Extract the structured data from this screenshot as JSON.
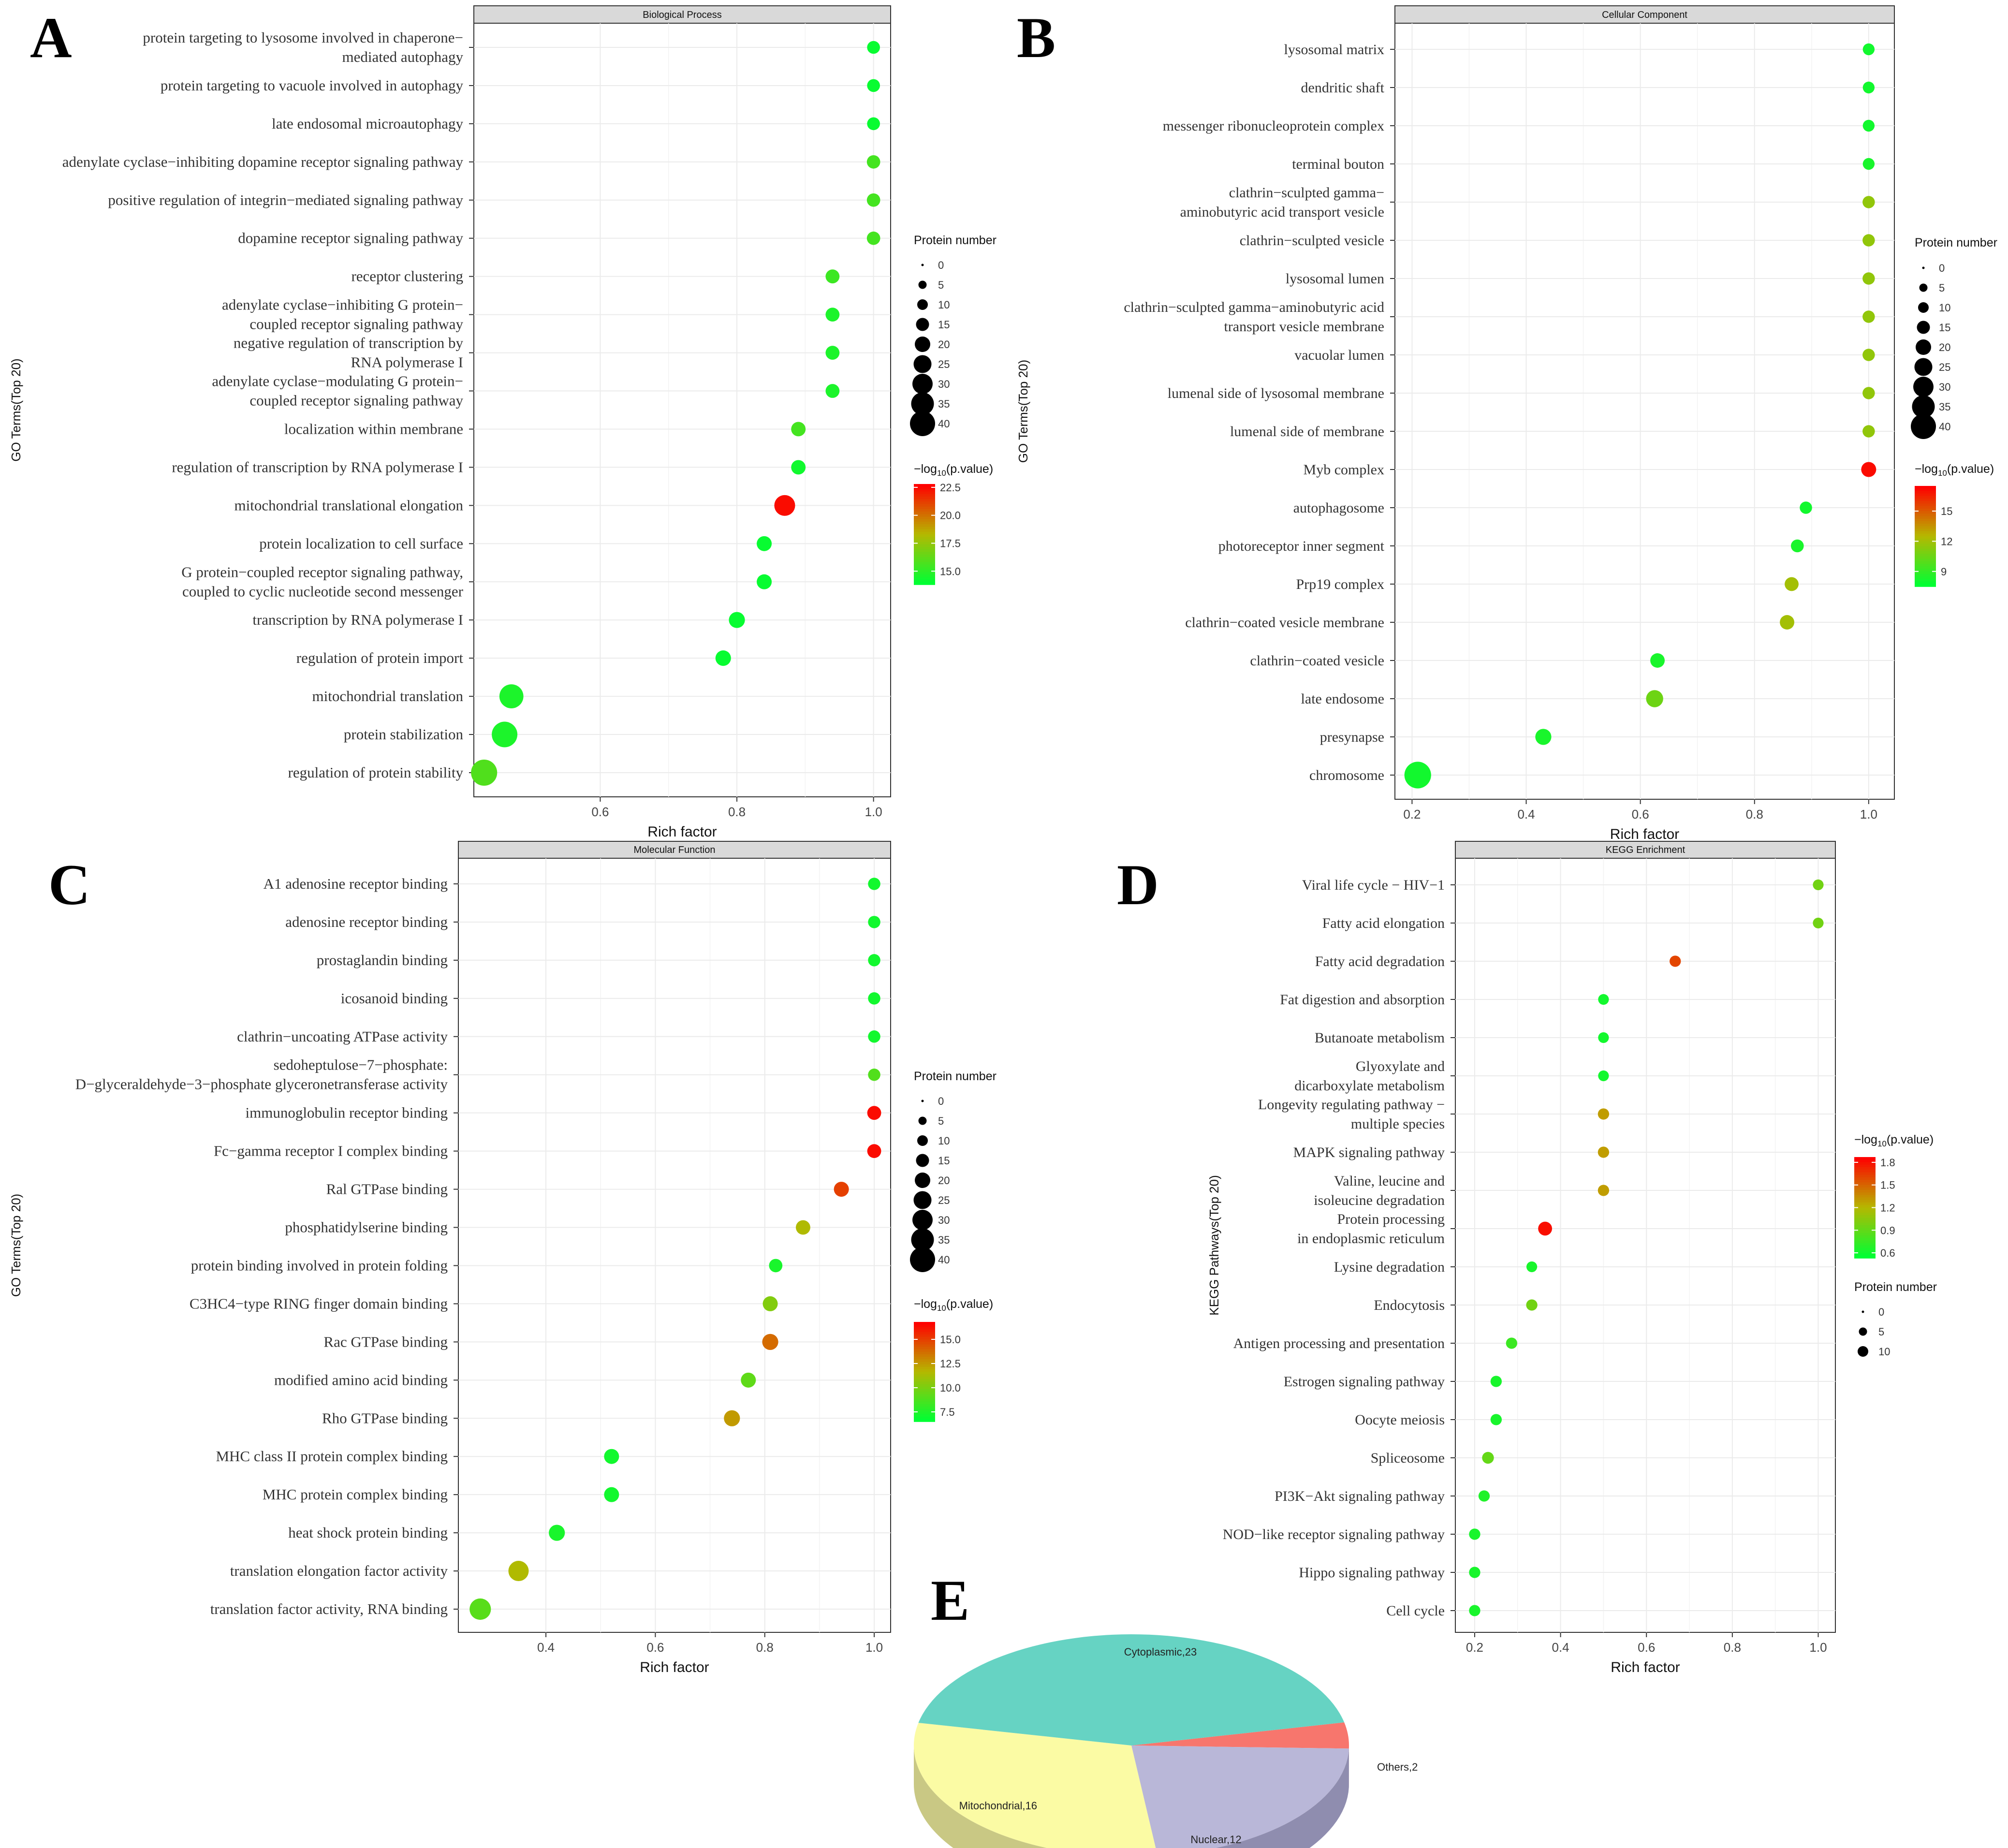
{
  "figure_labels": {
    "A": "A",
    "B": "B",
    "C": "C",
    "D": "D",
    "E": "E"
  },
  "chart_data": [
    {
      "id": "A",
      "type": "scatter",
      "title": "Biological Process",
      "xlabel": "Rich factor",
      "ylabel": "GO Terms(Top 20)",
      "xlim": [
        0.415,
        1.025
      ],
      "xticks": [
        0.6,
        0.8,
        1.0
      ],
      "xtick_labels": [
        "0.6",
        "0.8",
        "1.0"
      ],
      "size_legend": {
        "title": "Protein number",
        "values": [
          0,
          5,
          10,
          15,
          20,
          25,
          30,
          35,
          40
        ]
      },
      "color_legend": {
        "title_prefix": "−log",
        "title_sub": "10",
        "title_suffix": "(p.value)",
        "ticks": [
          15.0,
          17.5,
          20.0,
          22.5
        ],
        "tick_labels": [
          "15.0",
          "17.5",
          "20.0",
          "22.5"
        ],
        "min": 13.8,
        "max": 22.8
      },
      "terms": [
        "protein targeting to lysosome involved in chaperone−\nmediated autophagy",
        "protein targeting to vacuole involved in autophagy",
        "late endosomal microautophagy",
        "adenylate cyclase−inhibiting dopamine receptor signaling pathway",
        "positive regulation of integrin−mediated signaling pathway",
        "dopamine receptor signaling pathway",
        "receptor clustering",
        "adenylate cyclase−inhibiting G protein−\ncoupled receptor signaling pathway",
        "negative regulation of transcription by\nRNA polymerase I",
        "adenylate cyclase−modulating G protein−\ncoupled receptor signaling pathway",
        "localization within membrane",
        "regulation of transcription by RNA polymerase I",
        "mitochondrial translational elongation",
        "protein localization to cell surface",
        "G protein−coupled receptor signaling pathway,\ncoupled to cyclic nucleotide second messenger",
        "transcription by RNA polymerase I",
        "regulation of protein import",
        "mitochondrial translation",
        "protein stabilization",
        "regulation of protein stability"
      ],
      "x": [
        1.0,
        1.0,
        1.0,
        1.0,
        1.0,
        1.0,
        0.94,
        0.94,
        0.94,
        0.94,
        0.89,
        0.89,
        0.87,
        0.84,
        0.84,
        0.8,
        0.78,
        0.47,
        0.46,
        0.43
      ],
      "count": [
        6,
        6,
        6,
        7,
        7,
        7,
        8,
        8,
        8,
        8,
        9,
        9,
        21,
        10,
        10,
        12,
        11,
        27,
        30,
        31
      ],
      "pvalue_log": [
        14.0,
        14.0,
        14.0,
        15.5,
        15.5,
        15.5,
        15.3,
        14.5,
        14.5,
        14.5,
        15.5,
        14.2,
        22.5,
        14.0,
        14.0,
        14.0,
        14.0,
        14.5,
        14.5,
        15.8
      ]
    },
    {
      "id": "B",
      "type": "scatter",
      "title": "Cellular Component",
      "xlabel": "Rich factor",
      "ylabel": "GO Terms(Top 20)",
      "xlim": [
        0.17,
        1.045
      ],
      "xticks": [
        0.2,
        0.4,
        0.6,
        0.8,
        1.0
      ],
      "xtick_labels": [
        "0.2",
        "0.4",
        "0.6",
        "0.8",
        "1.0"
      ],
      "size_legend": {
        "title": "Protein number",
        "values": [
          0,
          5,
          10,
          15,
          20,
          25,
          30,
          35,
          40
        ]
      },
      "color_legend": {
        "title_prefix": "−log",
        "title_sub": "10",
        "title_suffix": "(p.value)",
        "ticks": [
          9,
          12,
          15
        ],
        "tick_labels": [
          "9",
          "12",
          "15"
        ],
        "min": 7.5,
        "max": 17.5
      },
      "terms": [
        "lysosomal matrix",
        "dendritic shaft",
        "messenger ribonucleoprotein complex",
        "terminal bouton",
        "clathrin−sculpted gamma−\naminobutyric acid transport vesicle",
        "clathrin−sculpted vesicle",
        "lysosomal lumen",
        "clathrin−sculpted gamma−aminobutyric acid\ntransport vesicle membrane",
        "vacuolar lumen",
        "lumenal side of lysosomal membrane",
        "lumenal side of membrane",
        "Myb complex",
        "autophagosome",
        "photoreceptor inner segment",
        "Prp19 complex",
        "clathrin−coated vesicle membrane",
        "clathrin−coated vesicle",
        "late endosome",
        "presynapse",
        "chromosome"
      ],
      "x": [
        1.0,
        1.0,
        1.0,
        1.0,
        1.0,
        1.0,
        1.0,
        1.0,
        1.0,
        1.0,
        1.0,
        1.0,
        0.89,
        0.875,
        0.865,
        0.857,
        0.63,
        0.625,
        0.43,
        0.21
      ],
      "count": [
        4,
        4,
        4,
        4,
        5,
        5,
        5,
        5,
        5,
        5,
        5,
        10,
        5,
        6,
        8,
        9,
        9,
        14,
        12,
        32
      ],
      "pvalue_log": [
        8.0,
        8.0,
        8.0,
        8.2,
        11.5,
        11.5,
        11.5,
        11.5,
        11.5,
        11.5,
        11.5,
        17.2,
        8.0,
        8.2,
        12.0,
        12.0,
        8.2,
        10.5,
        8.2,
        8.0
      ]
    },
    {
      "id": "C",
      "type": "scatter",
      "title": "Molecular Function",
      "xlabel": "Rich factor",
      "ylabel": "GO Terms(Top 20)",
      "xlim": [
        0.24,
        1.03
      ],
      "xticks": [
        0.4,
        0.6,
        0.8,
        1.0
      ],
      "xtick_labels": [
        "0.4",
        "0.6",
        "0.8",
        "1.0"
      ],
      "size_legend": {
        "title": "Protein number",
        "values": [
          0,
          5,
          10,
          15,
          20,
          25,
          30,
          35,
          40
        ]
      },
      "color_legend": {
        "title_prefix": "−log",
        "title_sub": "10",
        "title_suffix": "(p.value)",
        "ticks": [
          7.5,
          10.0,
          12.5,
          15.0
        ],
        "tick_labels": [
          "7.5",
          "10.0",
          "12.5",
          "15.0"
        ],
        "min": 6.5,
        "max": 16.8
      },
      "terms": [
        "A1 adenosine receptor binding",
        "adenosine receptor binding",
        "prostaglandin binding",
        "icosanoid binding",
        "clathrin−uncoating ATPase activity",
        "sedoheptulose−7−phosphate:\nD−glyceraldehyde−3−phosphate glyceronetransferase activity",
        "immunoglobulin receptor binding",
        "Fc−gamma receptor I complex binding",
        "Ral GTPase binding",
        "phosphatidylserine binding",
        "protein binding involved in protein folding",
        "C3HC4−type RING finger domain binding",
        "Rac GTPase binding",
        "modified amino acid binding",
        "Rho GTPase binding",
        "MHC class II protein complex binding",
        "MHC protein complex binding",
        "heat shock protein binding",
        "translation elongation factor activity",
        "translation factor activity, RNA binding"
      ],
      "x": [
        1.0,
        1.0,
        1.0,
        1.0,
        1.0,
        1.0,
        1.0,
        1.0,
        0.94,
        0.87,
        0.82,
        0.81,
        0.81,
        0.77,
        0.74,
        0.52,
        0.52,
        0.42,
        0.35,
        0.28
      ],
      "count": [
        5,
        5,
        5,
        5,
        5,
        5,
        8,
        8,
        10,
        9,
        7,
        10,
        12,
        10,
        12,
        10,
        10,
        12,
        20,
        22
      ],
      "pvalue_log": [
        7.0,
        7.0,
        7.0,
        7.0,
        7.0,
        8.8,
        16.5,
        16.5,
        15.0,
        11.5,
        7.2,
        10.2,
        13.8,
        9.2,
        12.5,
        7.0,
        7.0,
        7.2,
        11.5,
        9.0
      ]
    },
    {
      "id": "D",
      "type": "scatter",
      "title": "KEGG Enrichment",
      "xlabel": "Rich factor",
      "ylabel": "KEGG Pathways(Top 20)",
      "xlim": [
        0.155,
        1.04
      ],
      "xticks": [
        0.2,
        0.4,
        0.6,
        0.8,
        1.0
      ],
      "xtick_labels": [
        "0.2",
        "0.4",
        "0.6",
        "0.8",
        "1.0"
      ],
      "size_legend": {
        "title": "Protein number",
        "values": [
          0,
          5,
          10
        ]
      },
      "color_legend": {
        "title_prefix": "−log",
        "title_sub": "10",
        "title_suffix": "(p.value)",
        "ticks": [
          0.6,
          0.9,
          1.2,
          1.5,
          1.8
        ],
        "tick_labels": [
          "0.6",
          "0.9",
          "1.2",
          "1.5",
          "1.8"
        ],
        "min": 0.53,
        "max": 1.87
      },
      "terms": [
        "Viral life cycle − HIV−1",
        "Fatty acid elongation",
        "Fatty acid degradation",
        "Fat digestion and absorption",
        "Butanoate metabolism",
        "Glyoxylate and\ndicarboxylate metabolism",
        "Longevity regulating pathway −\nmultiple species",
        "MAPK signaling pathway",
        "Valine, leucine and\nisoleucine degradation",
        "Protein processing\nin endoplasmic reticulum",
        "Lysine degradation",
        "Endocytosis",
        "Antigen processing and presentation",
        "Estrogen signaling pathway",
        "Oocyte meiosis",
        "Spliceosome",
        "PI3K−Akt signaling pathway",
        "NOD−like receptor signaling pathway",
        "Hippo signaling pathway",
        "Cell cycle"
      ],
      "x": [
        1.0,
        1.0,
        0.667,
        0.5,
        0.5,
        0.5,
        0.5,
        0.5,
        0.5,
        0.364,
        0.333,
        0.333,
        0.286,
        0.25,
        0.25,
        0.231,
        0.222,
        0.2,
        0.2,
        0.2
      ],
      "count": [
        2,
        2,
        3,
        2,
        2,
        2,
        3,
        3,
        3,
        8,
        2,
        3,
        3,
        3,
        3,
        4,
        3,
        3,
        3,
        3
      ],
      "pvalue_log": [
        0.95,
        0.95,
        1.62,
        0.6,
        0.6,
        0.6,
        1.3,
        1.3,
        1.3,
        1.82,
        0.62,
        0.95,
        0.75,
        0.62,
        0.62,
        0.9,
        0.65,
        0.62,
        0.62,
        0.62
      ]
    },
    {
      "id": "E",
      "type": "pie",
      "categories": [
        "Cytoplasmic",
        "Nuclear",
        "Mitochondrial",
        "Others"
      ],
      "values": [
        23,
        12,
        16,
        2
      ],
      "labels": [
        "Cytoplasmic,23",
        "Nuclear,12",
        "Mitochondrial,16",
        "Others,2"
      ],
      "colors": [
        "#66d3c3",
        "#b9b7d8",
        "#fbfba4",
        "#f7766d"
      ]
    }
  ]
}
